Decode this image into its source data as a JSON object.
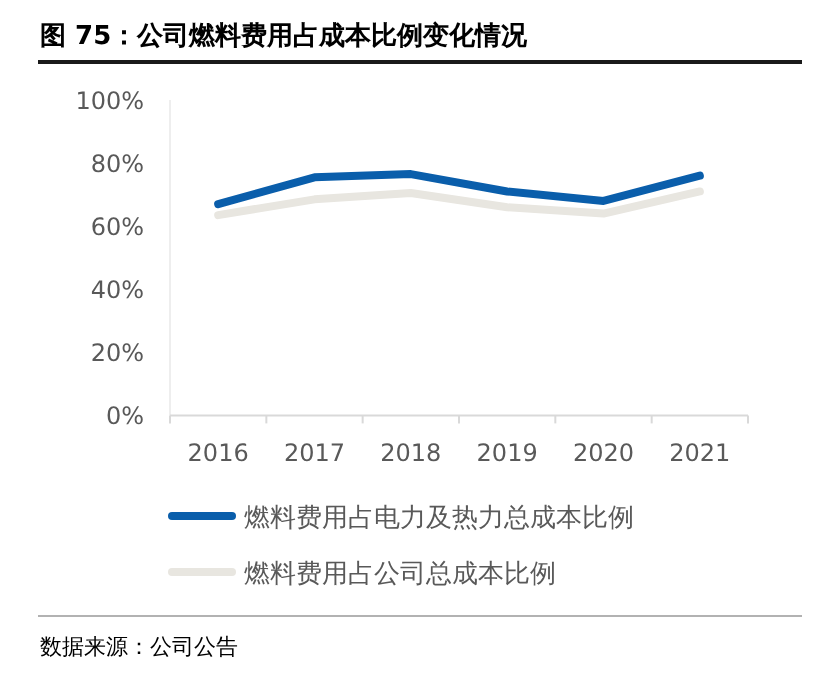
{
  "chart_data": {
    "type": "line",
    "title": "图 75：公司燃料费用占成本比例变化情况",
    "categories": [
      "2016",
      "2017",
      "2018",
      "2019",
      "2020",
      "2021"
    ],
    "series": [
      {
        "name": "燃料费用占电力及热力总成本比例",
        "color": "#0a5eab",
        "values": [
          67,
          75.5,
          76.5,
          71,
          68,
          76
        ]
      },
      {
        "name": "燃料费用占公司总成本比例",
        "color": "#e8e6e0",
        "values": [
          63.5,
          68.5,
          70.5,
          66,
          64,
          71
        ]
      }
    ],
    "ylim": [
      0,
      100
    ],
    "yticks": [
      {
        "value": 0,
        "label": "0%"
      },
      {
        "value": 20,
        "label": "20%"
      },
      {
        "value": 40,
        "label": "40%"
      },
      {
        "value": 60,
        "label": "60%"
      },
      {
        "value": 80,
        "label": "80%"
      },
      {
        "value": 100,
        "label": "100%"
      }
    ],
    "grid": false,
    "legend": "bottom",
    "marker": "none",
    "line_style": "solid",
    "annotations": [
      "数据来源：公司公告"
    ]
  }
}
